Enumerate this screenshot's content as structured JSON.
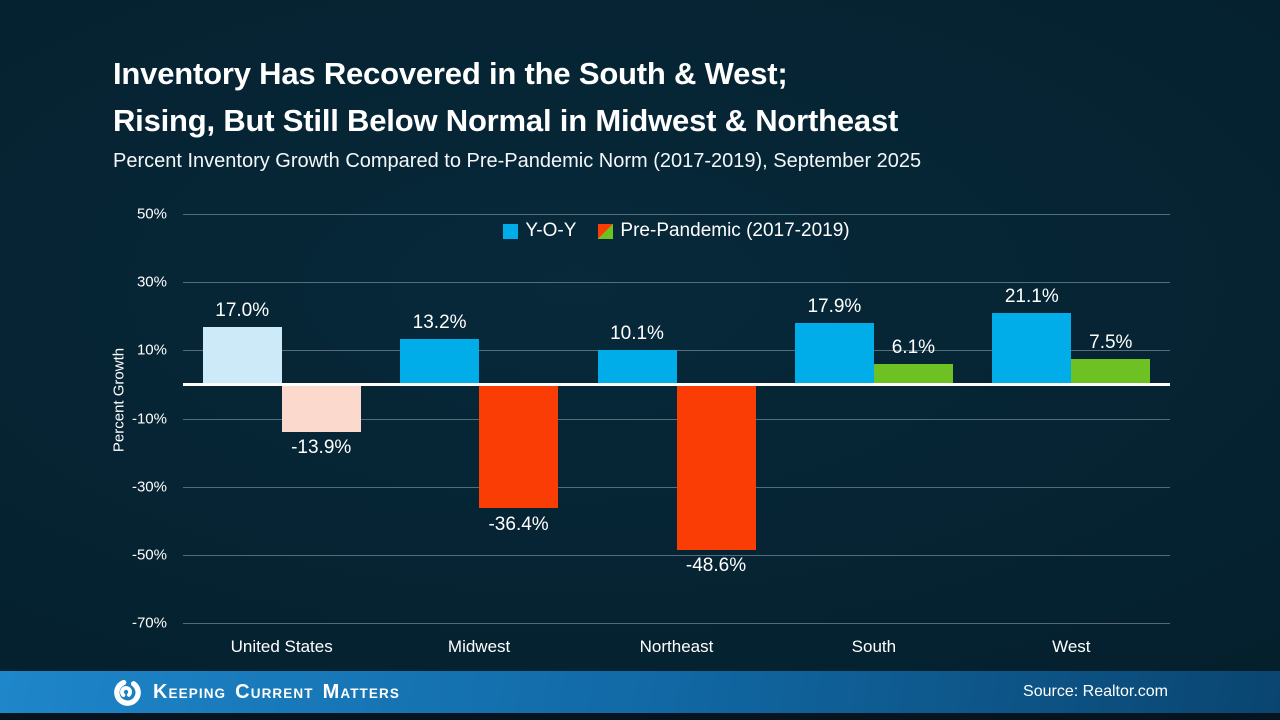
{
  "title": {
    "line1": "Inventory Has Recovered in the South & West;",
    "line2": "Rising, But Still Below Normal in Midwest & Northeast"
  },
  "subtitle": "Percent Inventory Growth Compared to Pre-Pandemic Norm (2017-2019), September 2025",
  "chart_data": {
    "type": "bar",
    "categories": [
      "United States",
      "Midwest",
      "Northeast",
      "South",
      "West"
    ],
    "series": [
      {
        "name": "Y-O-Y",
        "values": [
          17.0,
          13.2,
          10.1,
          17.9,
          21.1
        ]
      },
      {
        "name": "Pre-Pandemic (2017-2019)",
        "values": [
          -13.9,
          -36.4,
          -48.6,
          6.1,
          7.5
        ]
      }
    ],
    "value_labels": [
      [
        "17.0%",
        "13.2%",
        "10.1%",
        "17.9%",
        "21.1%"
      ],
      [
        "-13.9%",
        "-36.4%",
        "-48.6%",
        "6.1%",
        "7.5%"
      ]
    ],
    "bar_colors": [
      [
        "#cdeaf9",
        "#00ade9",
        "#00ade9",
        "#00ade9",
        "#00ade9"
      ],
      [
        "#fcd9cd",
        "#fa3c05",
        "#fa3c05",
        "#6dc122",
        "#6dc122"
      ]
    ],
    "ylabel": "Percent Growth",
    "xlabel": "",
    "ylim": [
      -70,
      50
    ],
    "yticks": [
      50,
      30,
      10,
      -10,
      -30,
      -50,
      -70
    ],
    "ytick_labels": [
      "50%",
      "30%",
      "10%",
      "-10%",
      "-30%",
      "-50%",
      "-70%"
    ],
    "grid": true,
    "legend_position": "top-center",
    "colors": {
      "yoy_blue": "#00ade9",
      "yoy_blue_muted": "#cdeaf9",
      "negative_red": "#fa3c05",
      "negative_red_muted": "#fcd9cd",
      "positive_green": "#6dc122",
      "zero_line": "#ffffff",
      "gridline": "#98a8b2",
      "background": "#05212f",
      "footer_blue_left": "#1e86ca",
      "footer_blue_right": "#0a4570"
    }
  },
  "footer": {
    "brand": [
      "Keeping",
      "Current",
      "Matters"
    ],
    "source": "Source: Realtor.com"
  }
}
